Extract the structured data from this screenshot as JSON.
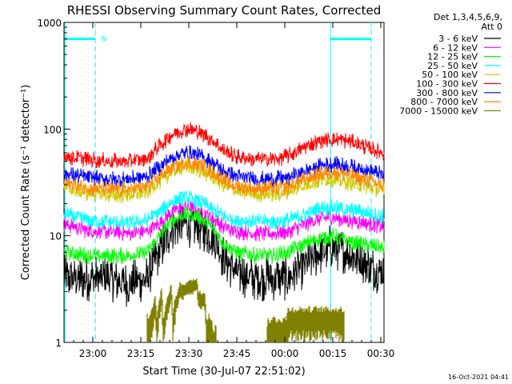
{
  "chart_data": {
    "type": "line",
    "title": "RHESSI Observing Summary Count Rates, Corrected",
    "xlabel": "Start Time (30-Jul-07 22:51:02)",
    "ylabel": "Corrected Count Rate (s⁻¹ detector⁻¹)",
    "ylog": true,
    "ylim": [
      1,
      1000
    ],
    "xlim_minutes": [
      0,
      100
    ],
    "x_ticks": [
      {
        "label": "23:00",
        "min": 9
      },
      {
        "label": "23:15",
        "min": 24
      },
      {
        "label": "23:30",
        "min": 39
      },
      {
        "label": "23:45",
        "min": 54
      },
      {
        "label": "00:00",
        "min": 69
      },
      {
        "label": "00:15",
        "min": 84
      },
      {
        "label": "00:30",
        "min": 99
      }
    ],
    "y_ticks": [
      {
        "label": "1",
        "v": 1
      },
      {
        "label": "10",
        "v": 10
      },
      {
        "label": "100",
        "v": 100
      },
      {
        "label": "1000",
        "v": 1000
      }
    ],
    "legend_header": [
      "Det 1,3,4,5,6,9,",
      "Att 0"
    ],
    "legend_placement": "top-right",
    "timestamp": "16-Oct-2021 04:41",
    "flag_label": "N",
    "flag_color": "#00ffff",
    "series": [
      {
        "name": "3 - 6 keV",
        "color": "#000000",
        "x": [
          0,
          8,
          14,
          20,
          26,
          30,
          34,
          38,
          42,
          46,
          50,
          54,
          60,
          66,
          70,
          76,
          80,
          84,
          88,
          92,
          96,
          100
        ],
        "values": [
          4,
          4,
          4,
          3.5,
          4,
          7,
          12,
          13,
          12,
          10,
          6,
          4.5,
          4,
          4,
          4,
          5.5,
          7,
          8,
          7,
          6,
          5,
          4.5
        ]
      },
      {
        "name": "6 - 12 keV",
        "color": "#ff00ff",
        "x": [
          0,
          8,
          14,
          20,
          26,
          30,
          34,
          38,
          42,
          46,
          50,
          54,
          60,
          66,
          70,
          76,
          80,
          84,
          88,
          92,
          96,
          100
        ],
        "values": [
          13,
          11,
          11,
          10.5,
          11,
          13,
          17,
          19,
          17,
          15,
          12,
          11,
          10.5,
          10.5,
          11,
          13,
          14.5,
          15,
          14,
          13.5,
          13,
          12
        ]
      },
      {
        "name": "12 - 25 keV",
        "color": "#00ff00",
        "x": [
          0,
          8,
          14,
          20,
          26,
          30,
          34,
          38,
          42,
          46,
          50,
          54,
          60,
          66,
          70,
          76,
          80,
          84,
          88,
          92,
          96,
          100
        ],
        "values": [
          7,
          6.5,
          6.5,
          6.5,
          7,
          10,
          14,
          16,
          15,
          12,
          8.5,
          7,
          6.5,
          6.5,
          7,
          8.5,
          9.5,
          10,
          9,
          8.5,
          8,
          7.5
        ]
      },
      {
        "name": "25 - 50 keV",
        "color": "#00ffff",
        "x": [
          0,
          8,
          14,
          20,
          26,
          30,
          34,
          38,
          42,
          46,
          50,
          54,
          60,
          66,
          70,
          76,
          80,
          84,
          88,
          92,
          96,
          100
        ],
        "values": [
          16,
          14,
          13.5,
          13,
          14,
          17,
          21,
          23,
          21,
          18,
          15,
          14,
          13.5,
          13.5,
          14,
          16,
          18,
          18.5,
          17.5,
          17,
          16,
          15
        ]
      },
      {
        "name": "50 - 100 keV",
        "color": "#cccc00",
        "x": [
          0,
          8,
          14,
          20,
          26,
          30,
          34,
          38,
          42,
          46,
          50,
          54,
          60,
          66,
          70,
          76,
          80,
          84,
          88,
          92,
          96,
          100
        ],
        "values": [
          28,
          25,
          24,
          24,
          26,
          32,
          40,
          45,
          42,
          36,
          30,
          26,
          24.5,
          24.5,
          26,
          30,
          33,
          34,
          32,
          30,
          28,
          26
        ]
      },
      {
        "name": "100 - 300 keV",
        "color": "#ff0000",
        "x": [
          0,
          8,
          14,
          20,
          26,
          30,
          34,
          38,
          42,
          46,
          50,
          54,
          60,
          66,
          70,
          76,
          80,
          84,
          88,
          92,
          96,
          100
        ],
        "values": [
          55,
          52,
          50,
          50,
          53,
          70,
          90,
          100,
          95,
          80,
          62,
          55,
          52,
          52,
          56,
          70,
          78,
          80,
          78,
          72,
          65,
          60
        ]
      },
      {
        "name": "300 - 800 keV",
        "color": "#0000ff",
        "x": [
          0,
          8,
          14,
          20,
          26,
          30,
          34,
          38,
          42,
          46,
          50,
          54,
          60,
          66,
          70,
          76,
          80,
          84,
          88,
          92,
          96,
          100
        ],
        "values": [
          38,
          35,
          34,
          34,
          36,
          44,
          55,
          60,
          57,
          49,
          40,
          36,
          34,
          34,
          35,
          41,
          45,
          47,
          45,
          43,
          40,
          37
        ]
      },
      {
        "name": "800 - 7000 keV",
        "color": "#ff8800",
        "x": [
          0,
          8,
          14,
          20,
          26,
          30,
          34,
          38,
          42,
          46,
          50,
          54,
          60,
          66,
          70,
          76,
          80,
          84,
          88,
          92,
          96,
          100
        ],
        "values": [
          31,
          28,
          27,
          27,
          29,
          36,
          44,
          48,
          46,
          40,
          33,
          29,
          27.5,
          27.5,
          29,
          34,
          38,
          40,
          38,
          35,
          32,
          29
        ]
      },
      {
        "name": "7000 - 15000 keV",
        "color": "#808000",
        "x": [
          0,
          0.2,
          25.5,
          26,
          27,
          28.5,
          29,
          30.5,
          31,
          33.5,
          34,
          36.3,
          36.5,
          41.5,
          42,
          44,
          44.5,
          46,
          46.5,
          47.5,
          48,
          63,
          63.5,
          64,
          64.5,
          69.5,
          70,
          80,
          80.5,
          87.5,
          88,
          100
        ],
        "values": [
          0,
          0,
          0,
          1.6,
          1.6,
          2.5,
          1.5,
          3.1,
          1.5,
          3.3,
          1.8,
          3.5,
          3.3,
          3.8,
          2.8,
          2.8,
          1.6,
          1.6,
          1.2,
          1.2,
          0,
          0,
          1.4,
          1.4,
          1.5,
          1.5,
          1.9,
          1.9,
          1.9,
          1.9,
          0,
          0
        ]
      }
    ]
  }
}
